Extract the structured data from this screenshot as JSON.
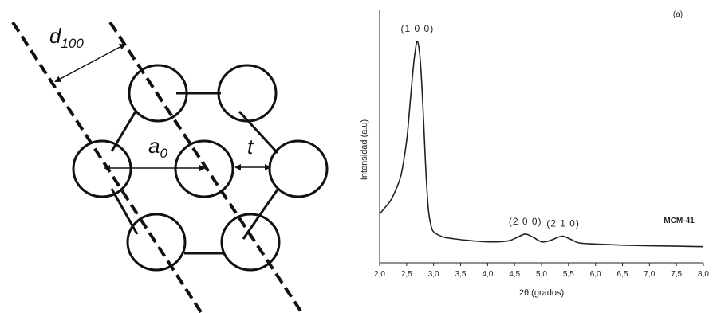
{
  "diagram": {
    "d_label": "d",
    "d_sub": "100",
    "a_label": "a",
    "a_sub": "0",
    "t_label": "t"
  },
  "chart_data": {
    "type": "line",
    "panel_label": "(a)",
    "xlabel": "2θ (grados)",
    "ylabel": "Intensidad (a.u)",
    "xlim": [
      2.0,
      8.0
    ],
    "ylim": [
      0,
      100
    ],
    "xticks": [
      "2,0",
      "2,5",
      "3,0",
      "3,5",
      "4,0",
      "4,5",
      "5,0",
      "5,5",
      "6,0",
      "6,5",
      "7,0",
      "7,5",
      "8,0"
    ],
    "series": [
      {
        "name": "MCM-41",
        "x": [
          2.0,
          2.1,
          2.2,
          2.3,
          2.4,
          2.5,
          2.55,
          2.6,
          2.65,
          2.7,
          2.75,
          2.8,
          2.85,
          2.9,
          2.95,
          3.0,
          3.1,
          3.2,
          3.4,
          3.6,
          3.8,
          4.0,
          4.2,
          4.4,
          4.55,
          4.7,
          4.85,
          5.0,
          5.15,
          5.3,
          5.4,
          5.55,
          5.7,
          6.0,
          6.5,
          7.0,
          7.5,
          8.0
        ],
        "y": [
          22,
          25,
          28,
          33,
          40,
          55,
          68,
          82,
          94,
          100,
          92,
          72,
          45,
          25,
          17,
          14,
          12.5,
          11.5,
          10.8,
          10.2,
          9.8,
          9.5,
          9.5,
          10,
          11.5,
          13,
          11.5,
          9.5,
          10,
          11.5,
          12,
          10.5,
          9,
          8.5,
          8,
          7.7,
          7.5,
          7.3
        ]
      }
    ],
    "annotations": [
      {
        "text": "(1 0 0)",
        "x": 2.7,
        "y": 100
      },
      {
        "text": "(2 0 0)",
        "x": 4.7,
        "y": 13
      },
      {
        "text": "(2 1 0)",
        "x": 5.4,
        "y": 12
      },
      {
        "text": "MCM-41",
        "x": 7.55,
        "y": 18
      }
    ]
  }
}
